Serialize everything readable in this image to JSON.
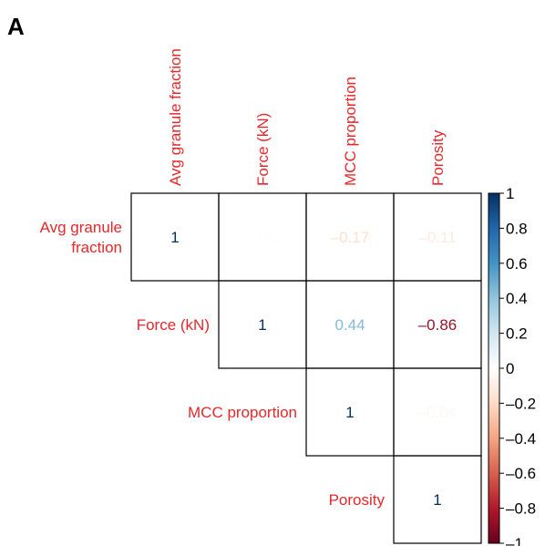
{
  "panel_label": "A",
  "chart_data": {
    "type": "heatmap",
    "title": "",
    "variables": [
      "Avg granule fraction",
      "Force (kN)",
      "MCC proportion",
      "Porosity"
    ],
    "row_labels": [
      [
        "Avg granule",
        "fraction"
      ],
      [
        "Force (kN)"
      ],
      [
        "MCC proportion"
      ],
      [
        "Porosity"
      ]
    ],
    "column_labels": [
      "Avg granule fraction",
      "Force (kN)",
      "MCC proportion",
      "Porosity"
    ],
    "matrix_upper": [
      [
        1,
        -0.01,
        -0.17,
        -0.11
      ],
      [
        null,
        1,
        0.44,
        -0.86
      ],
      [
        null,
        null,
        1,
        -0.04
      ],
      [
        null,
        null,
        null,
        1
      ]
    ],
    "cell_labels": [
      [
        "1",
        "–0.01",
        "–0.17",
        "–0.11"
      ],
      [
        null,
        "1",
        "0.44",
        "–0.86"
      ],
      [
        null,
        null,
        "1",
        "–0.04"
      ],
      [
        null,
        null,
        null,
        "1"
      ]
    ],
    "colorbar": {
      "range": [
        -1,
        1
      ],
      "ticks": [
        1,
        0.8,
        0.6,
        0.4,
        0.2,
        0,
        -0.2,
        -0.4,
        -0.6,
        -0.8,
        -1
      ],
      "tick_labels": [
        "1",
        "0.8",
        "0.6",
        "0.4",
        "0.2",
        "0",
        "–0.2",
        "–0.4",
        "–0.6",
        "–0.8",
        "–1"
      ],
      "colors": [
        "#67001f",
        "#b2182b",
        "#d6604d",
        "#f4a582",
        "#fddbc7",
        "#ffffff",
        "#d1e5f0",
        "#92c5de",
        "#4393c3",
        "#2166ac",
        "#053061"
      ]
    },
    "label_color": "#e8272a"
  }
}
